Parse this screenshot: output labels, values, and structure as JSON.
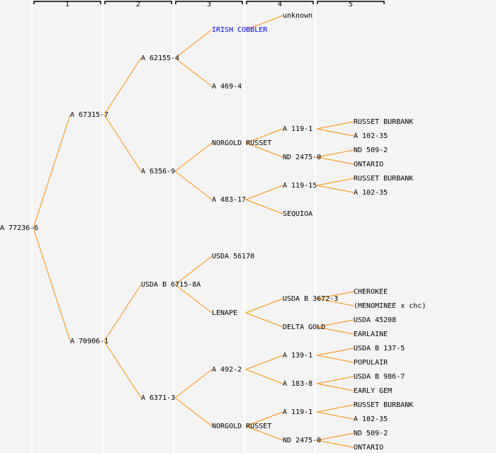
{
  "colors": {
    "background": "#f4f4f4",
    "edge": "#ff8c00",
    "text": "#000000",
    "link": "#0000ff",
    "separator": "#ffffff"
  },
  "generations": [
    "1",
    "2",
    "3",
    "4",
    "5"
  ],
  "tree": {
    "name": "A 77236-6",
    "parents": [
      {
        "name": "A 67315-7",
        "parents": [
          {
            "name": "A 62155-4",
            "parents": [
              {
                "name": "IRISH COBBLER",
                "link": true,
                "parents": [
                  {
                    "name": "unknown"
                  },
                  null
                ]
              },
              {
                "name": "A 469-4"
              }
            ]
          },
          {
            "name": "A 6356-9",
            "parents": [
              {
                "name": "NORGOLD RUSSET",
                "parents": [
                  {
                    "name": "A 119-1",
                    "parents": [
                      {
                        "name": "RUSSET BURBANK"
                      },
                      {
                        "name": "A 102-35"
                      }
                    ]
                  },
                  {
                    "name": "ND 2475-0",
                    "parents": [
                      {
                        "name": "ND 509-2"
                      },
                      {
                        "name": "ONTARIO"
                      }
                    ]
                  }
                ]
              },
              {
                "name": "A 483-17",
                "parents": [
                  {
                    "name": "A 119-15",
                    "parents": [
                      {
                        "name": "RUSSET BURBANK"
                      },
                      {
                        "name": "A 102-35"
                      }
                    ]
                  },
                  {
                    "name": "SEQUIOA"
                  }
                ]
              }
            ]
          }
        ]
      },
      {
        "name": "A 70906-1",
        "parents": [
          {
            "name": "USDA B 6715-8A",
            "parents": [
              {
                "name": "USDA 56170"
              },
              {
                "name": "LENAPE",
                "parents": [
                  {
                    "name": "USDA B 3672-3",
                    "parents": [
                      {
                        "name": "CHEROKEE"
                      },
                      {
                        "name": "(MENOMINEE x chc)"
                      }
                    ]
                  },
                  {
                    "name": "DELTA GOLD",
                    "parents": [
                      {
                        "name": "USDA 45208"
                      },
                      {
                        "name": "EARLAINE"
                      }
                    ]
                  }
                ]
              }
            ]
          },
          {
            "name": "A 6371-3",
            "parents": [
              {
                "name": "A 492-2",
                "parents": [
                  {
                    "name": "A 139-1",
                    "parents": [
                      {
                        "name": "USDA B 137-5"
                      },
                      {
                        "name": "POPULAIR"
                      }
                    ]
                  },
                  {
                    "name": "A 183-8",
                    "parents": [
                      {
                        "name": "USDA B 986-7"
                      },
                      {
                        "name": "EARLY GEM"
                      }
                    ]
                  }
                ]
              },
              {
                "name": "NORGOLD RUSSET",
                "parents": [
                  {
                    "name": "A 119-1",
                    "parents": [
                      {
                        "name": "RUSSET BURBANK"
                      },
                      {
                        "name": "A 102-35"
                      }
                    ]
                  },
                  {
                    "name": "ND 2475-0",
                    "parents": [
                      {
                        "name": "ND 509-2"
                      },
                      {
                        "name": "ONTARIO"
                      }
                    ]
                  }
                ]
              }
            ]
          }
        ]
      }
    ]
  }
}
